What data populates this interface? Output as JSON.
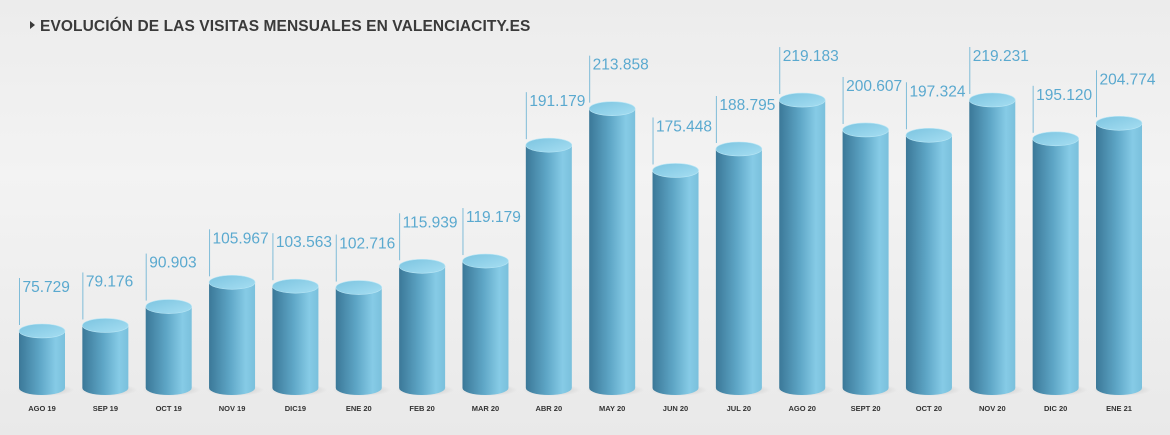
{
  "title": "EVOLUCIÓN DE LAS VISITAS MENSUALES EN VALENCIACITY.ES",
  "colors": {
    "bar_top": "#8fd2ea",
    "bar_body_light": "#7fc9e6",
    "bar_body_dark": "#3f7f9f",
    "value_text": "#5aa9cf",
    "leader_line": "#7fbcd8",
    "category_text": "#333333"
  },
  "chart_data": {
    "type": "bar",
    "title": "EVOLUCIÓN DE LAS VISITAS MENSUALES EN VALENCIACITY.ES",
    "categories": [
      "AGO 19",
      "SEP 19",
      "OCT 19",
      "NOV 19",
      "DIC19",
      "ENE 20",
      "FEB 20",
      "MAR 20",
      "ABR 20",
      "MAY 20",
      "JUN 20",
      "JUL 20",
      "AGO 20",
      "SEPT 20",
      "OCT 20",
      "NOV 20",
      "DIC 20",
      "ENE 21"
    ],
    "values": [
      75729,
      79176,
      90903,
      105967,
      103563,
      102716,
      115939,
      119179,
      191179,
      213858,
      175448,
      188795,
      219183,
      200607,
      197324,
      219231,
      195120,
      204774
    ],
    "value_labels": [
      "75.729",
      "79.176",
      "90.903",
      "105.967",
      "103.563",
      "102.716",
      "115.939",
      "119.179",
      "191.179",
      "213.858",
      "175.448",
      "188.795",
      "219.183",
      "200.607",
      "197.324",
      "219.231",
      "195.120",
      "204.774"
    ],
    "xlabel": "",
    "ylabel": "",
    "grid": false,
    "legend": "none"
  }
}
